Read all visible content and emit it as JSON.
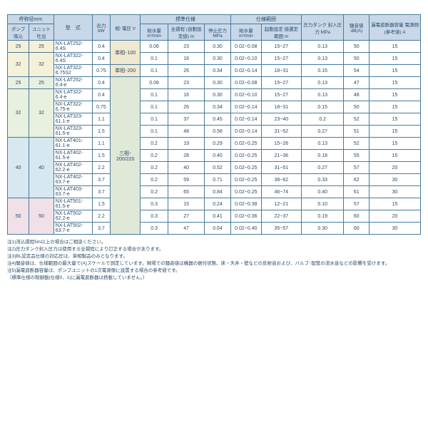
{
  "headers": {
    "dia": "呼称径mm",
    "suction": "ポンプ\n吸込",
    "discharge": "ユニット\n吐出",
    "model": "型　式",
    "power": "出力\nkW",
    "phase": "相･電圧\nV",
    "std": "標準仕様",
    "range": "仕様範囲",
    "flow": "給水量\nm³/min",
    "head": "全揚程\n(自動設定値)\nm",
    "stop": "停止圧力\nMPa",
    "flow2": "給水量\nm³/min",
    "headr": "起動設定\n値選定範囲\nm",
    "tank": "圧力タンク\n封入圧力\nMPa",
    "noise": "騒音値\ndB(A)",
    "breaker": "漏電遮断器容量\n電源側(参考値)\nA"
  },
  "phase1": "単相･100",
  "phase2": "単相･200",
  "phase3": "三相･200/220",
  "rows": [
    {
      "g": "g1",
      "ps": "25",
      "pd": "25",
      "m": "NX-LAT252-6.4S",
      "kw": "0.4",
      "f": "0.06",
      "h": "23",
      "sp": "0.30",
      "fr": "0.02~0.08",
      "hr": "15~27",
      "tp": "0.13",
      "n": "50",
      "b": "15"
    },
    {
      "g": "g1",
      "ps": "32",
      "pd": "32",
      "m": "NX-LAT322-6.4S",
      "kw": "0.4",
      "f": "0.1",
      "h": "16",
      "sp": "0.30",
      "fr": "0.02~0.10",
      "hr": "15~27",
      "tp": "0.13",
      "n": "50",
      "b": "15"
    },
    {
      "g": "g1",
      "ps": "",
      "pd": "",
      "m": "NX-LAT322-6.75S2",
      "kw": "0.75",
      "f": "0.1",
      "h": "26",
      "sp": "0.34",
      "fr": "0.02~0.14",
      "hr": "18~31",
      "tp": "0.15",
      "n": "54",
      "b": "15"
    },
    {
      "g": "g2",
      "ps": "25",
      "pd": "25",
      "m": "NX-LAT252-6.4-e",
      "kw": "0.4",
      "f": "0.06",
      "h": "23",
      "sp": "0.30",
      "fr": "0.02~0.08",
      "hr": "15~27",
      "tp": "0.13",
      "n": "47",
      "b": "15"
    },
    {
      "g": "g2",
      "ps": "32",
      "pd": "32",
      "m": "NX-LAT322-6.4-e",
      "kw": "0.4",
      "f": "0.1",
      "h": "16",
      "sp": "0.30",
      "fr": "0.02~0.10",
      "hr": "15~27",
      "tp": "0.13",
      "n": "48",
      "b": "15"
    },
    {
      "g": "g2",
      "ps": "",
      "pd": "",
      "m": "NX-LAT322-6.75-e",
      "kw": "0.75",
      "f": "0.1",
      "h": "26",
      "sp": "0.34",
      "fr": "0.02~0.14",
      "hr": "18~31",
      "tp": "0.15",
      "n": "50",
      "b": "15"
    },
    {
      "g": "g2",
      "ps": "",
      "pd": "",
      "m": "NX-LAT323-61.1-e",
      "kw": "1.1",
      "f": "0.1",
      "h": "37",
      "sp": "0.45",
      "fr": "0.02~0.14",
      "hr": "23~40",
      "tp": "0.2",
      "n": "52",
      "b": "15"
    },
    {
      "g": "g2",
      "ps": "",
      "pd": "",
      "m": "NX-LAT323-61.5-e",
      "kw": "1.5",
      "f": "0.1",
      "h": "48",
      "sp": "0.58",
      "fr": "0.02~0.14",
      "hr": "31~52",
      "tp": "0.27",
      "n": "51",
      "b": "15"
    },
    {
      "g": "g3",
      "ps": "40",
      "pd": "40",
      "m": "NX-LAT401-61.1-e",
      "kw": "1.1",
      "f": "0.2",
      "h": "19",
      "sp": "0.29",
      "fr": "0.02~0.25",
      "hr": "15~26",
      "tp": "0.13",
      "n": "52",
      "b": "15"
    },
    {
      "g": "g3",
      "ps": "",
      "pd": "",
      "m": "NX-LAT402-61.5-e",
      "kw": "1.5",
      "f": "0.2",
      "h": "28",
      "sp": "0.40",
      "fr": "0.02~0.25",
      "hr": "21~36",
      "tp": "0.18",
      "n": "55",
      "b": "15"
    },
    {
      "g": "g3",
      "ps": "",
      "pd": "",
      "m": "NX-LAT402-62.2-e",
      "kw": "2.2",
      "f": "0.2",
      "h": "40",
      "sp": "0.52",
      "fr": "0.02~0.25",
      "hr": "31~51",
      "tp": "0.27",
      "n": "57",
      "b": "20"
    },
    {
      "g": "g3",
      "ps": "",
      "pd": "",
      "m": "NX-LAT402-63.7-e",
      "kw": "3.7",
      "f": "0.2",
      "h": "59",
      "sp": "0.71",
      "fr": "0.02~0.25",
      "hr": "38~62",
      "tp": "0.33",
      "n": "62",
      "b": "30"
    },
    {
      "g": "g3",
      "ps": "",
      "pd": "",
      "m": "NX-LAT403-63.7-e",
      "kw": "3.7",
      "f": "0.2",
      "h": "65",
      "sp": "0.84",
      "fr": "0.02~0.25",
      "hr": "46~74",
      "tp": "0.40",
      "n": "61",
      "b": "30"
    },
    {
      "g": "g4",
      "ps": "50",
      "pd": "50",
      "m": "NX-LAT501-61.5-e",
      "kw": "1.5",
      "f": "0.3",
      "h": "15",
      "sp": "0.24",
      "fr": "0.02~0.38",
      "hr": "12~21",
      "tp": "0.10",
      "n": "57",
      "b": "15"
    },
    {
      "g": "g4",
      "ps": "",
      "pd": "",
      "m": "NX-LAT502-62.2-e",
      "kw": "2.2",
      "f": "0.3",
      "h": "27",
      "sp": "0.41",
      "fr": "0.02~0.36",
      "hr": "22~37",
      "tp": "0.19",
      "n": "60",
      "b": "20"
    },
    {
      "g": "g4",
      "ps": "",
      "pd": "",
      "m": "NX-LAT502-63.7-e",
      "kw": "3.7",
      "f": "0.3",
      "h": "47",
      "sp": "0.64",
      "fr": "0.02~0.40",
      "hr": "35~57",
      "tp": "0.30",
      "n": "60",
      "b": "30"
    }
  ],
  "notes": [
    "注1)流込揚程5m以上の場合はご相談ください。",
    "注2)圧力タンク封入圧力は使用する全揚程により訂正する場合があります。",
    "注3)BL認定品仕様の対応圧は、単相製品のみとなります。",
    "注4)騒音値は、仕様範囲の最大量で(A)スケールで測定しています。現場での騒音値は機器の据付状態、床・天井・壁などの反射音および、バルブ･配管の流水音などの影響を受けます。",
    "注5)漏電遮断器容量は、ポンプユニットの1次電源側に設置する場合の参考値です。",
    "（標準仕様の制御盤(仕様0、1)に漏電遮断器は搭載していません。）"
  ]
}
